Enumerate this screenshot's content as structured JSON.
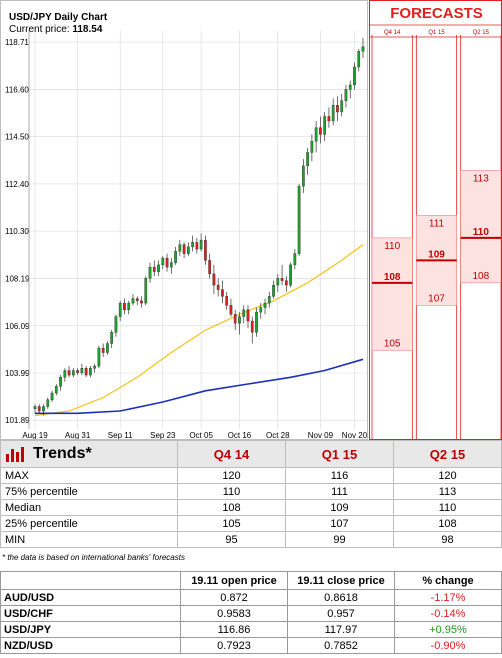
{
  "chart_header": {
    "title": "USD/JPY Daily Chart",
    "price_label": "Current price:",
    "price_value": "118.54"
  },
  "chart_data": {
    "type": "candlestick",
    "title": "USD/JPY Daily Chart",
    "ylim": [
      101.5,
      119.2
    ],
    "y_ticks": [
      "118.71",
      "116.60",
      "114.50",
      "112.40",
      "110.30",
      "108.19",
      "106.09",
      "103.99",
      "101.89"
    ],
    "x_ticks": [
      "Aug 19",
      "Aug 31",
      "Sep 11",
      "Sep 23",
      "Oct 05",
      "Oct 16",
      "Oct 28",
      "Nov 09",
      "Nov 20"
    ],
    "candles": [
      [
        102.4,
        102.6,
        102.2,
        102.5
      ],
      [
        102.5,
        102.6,
        102.2,
        102.3
      ],
      [
        102.3,
        102.6,
        102.1,
        102.5
      ],
      [
        102.5,
        102.9,
        102.4,
        102.8
      ],
      [
        102.8,
        103.2,
        102.7,
        103.1
      ],
      [
        103.1,
        103.5,
        103.0,
        103.4
      ],
      [
        103.4,
        103.9,
        103.2,
        103.8
      ],
      [
        103.8,
        104.2,
        103.6,
        104.1
      ],
      [
        104.1,
        104.3,
        103.8,
        103.9
      ],
      [
        103.9,
        104.2,
        103.8,
        104.1
      ],
      [
        104.1,
        104.2,
        103.9,
        104.0
      ],
      [
        104.0,
        104.4,
        103.9,
        104.2
      ],
      [
        104.2,
        104.3,
        103.8,
        103.9
      ],
      [
        103.9,
        104.3,
        103.8,
        104.2
      ],
      [
        104.2,
        104.4,
        104.0,
        104.3
      ],
      [
        104.3,
        105.2,
        104.2,
        105.1
      ],
      [
        105.1,
        105.3,
        104.7,
        104.9
      ],
      [
        104.9,
        105.4,
        104.8,
        105.3
      ],
      [
        105.3,
        105.9,
        105.1,
        105.8
      ],
      [
        105.8,
        106.6,
        105.6,
        106.5
      ],
      [
        106.5,
        107.2,
        106.3,
        107.1
      ],
      [
        107.1,
        107.3,
        106.6,
        106.8
      ],
      [
        106.8,
        107.2,
        106.6,
        107.1
      ],
      [
        107.1,
        107.5,
        107.0,
        107.3
      ],
      [
        107.3,
        107.4,
        107.0,
        107.2
      ],
      [
        107.2,
        107.4,
        106.9,
        107.1
      ],
      [
        107.1,
        108.3,
        107.0,
        108.2
      ],
      [
        108.2,
        108.9,
        108.0,
        108.7
      ],
      [
        108.7,
        109.0,
        108.3,
        108.5
      ],
      [
        108.5,
        109.0,
        108.3,
        108.8
      ],
      [
        108.8,
        109.2,
        108.6,
        109.1
      ],
      [
        109.1,
        109.3,
        108.5,
        108.7
      ],
      [
        108.7,
        109.1,
        108.4,
        108.9
      ],
      [
        108.9,
        109.6,
        108.8,
        109.4
      ],
      [
        109.4,
        109.9,
        109.2,
        109.7
      ],
      [
        109.7,
        109.8,
        109.1,
        109.3
      ],
      [
        109.3,
        109.8,
        109.2,
        109.6
      ],
      [
        109.6,
        110.1,
        109.4,
        109.8
      ],
      [
        109.8,
        110.0,
        109.3,
        109.5
      ],
      [
        109.5,
        110.2,
        109.4,
        109.9
      ],
      [
        109.9,
        110.1,
        108.8,
        109.0
      ],
      [
        109.0,
        109.3,
        108.2,
        108.4
      ],
      [
        108.4,
        108.8,
        107.5,
        107.9
      ],
      [
        107.9,
        108.2,
        107.4,
        107.7
      ],
      [
        107.7,
        108.1,
        107.1,
        107.4
      ],
      [
        107.4,
        107.6,
        106.8,
        107.0
      ],
      [
        107.0,
        107.3,
        106.5,
        106.6
      ],
      [
        106.6,
        106.8,
        105.9,
        106.2
      ],
      [
        106.2,
        106.7,
        105.7,
        106.5
      ],
      [
        106.5,
        107.0,
        106.2,
        106.8
      ],
      [
        106.8,
        107.0,
        106.0,
        106.3
      ],
      [
        106.3,
        106.5,
        105.3,
        105.8
      ],
      [
        105.8,
        106.9,
        105.6,
        106.7
      ],
      [
        106.7,
        107.1,
        106.4,
        106.9
      ],
      [
        106.9,
        107.3,
        106.6,
        107.1
      ],
      [
        107.1,
        107.6,
        106.9,
        107.4
      ],
      [
        107.4,
        108.1,
        107.3,
        107.9
      ],
      [
        107.9,
        108.4,
        107.6,
        108.2
      ],
      [
        108.2,
        108.8,
        107.9,
        108.1
      ],
      [
        108.1,
        108.3,
        107.6,
        107.9
      ],
      [
        107.9,
        108.9,
        107.8,
        108.8
      ],
      [
        108.8,
        109.5,
        108.6,
        109.3
      ],
      [
        109.3,
        112.4,
        109.2,
        112.3
      ],
      [
        112.3,
        113.5,
        112.0,
        113.2
      ],
      [
        113.2,
        114.0,
        112.8,
        113.8
      ],
      [
        113.8,
        114.6,
        113.4,
        114.3
      ],
      [
        114.3,
        115.2,
        113.8,
        114.9
      ],
      [
        114.9,
        115.4,
        114.2,
        114.6
      ],
      [
        114.6,
        115.6,
        114.3,
        115.4
      ],
      [
        115.4,
        115.8,
        114.9,
        115.2
      ],
      [
        115.2,
        116.2,
        115.0,
        115.9
      ],
      [
        115.9,
        116.3,
        115.2,
        115.6
      ],
      [
        115.6,
        116.4,
        115.4,
        116.1
      ],
      [
        116.1,
        116.8,
        115.8,
        116.6
      ],
      [
        116.6,
        117.0,
        116.2,
        116.8
      ],
      [
        116.8,
        117.8,
        116.6,
        117.6
      ],
      [
        117.6,
        118.4,
        117.4,
        118.3
      ],
      [
        118.3,
        118.9,
        118.0,
        118.5
      ]
    ],
    "series": [
      {
        "name": "",
        "color": "#f2c318",
        "points": [
          [
            0,
            102.1
          ],
          [
            8,
            102.3
          ],
          [
            16,
            102.9
          ],
          [
            24,
            103.8
          ],
          [
            32,
            104.9
          ],
          [
            40,
            105.9
          ],
          [
            48,
            106.6
          ],
          [
            56,
            107.2
          ],
          [
            64,
            108.0
          ],
          [
            72,
            109.0
          ],
          [
            77,
            109.7
          ]
        ]
      },
      {
        "name": "",
        "color": "#1c2fb8",
        "points": [
          [
            0,
            102.2
          ],
          [
            10,
            102.2
          ],
          [
            20,
            102.3
          ],
          [
            30,
            102.7
          ],
          [
            40,
            103.2
          ],
          [
            50,
            103.5
          ],
          [
            60,
            103.8
          ],
          [
            68,
            104.1
          ],
          [
            77,
            104.6
          ]
        ]
      }
    ],
    "forecasts": {
      "title": "FORECASTS",
      "columns": [
        "Q4 14",
        "Q1 15",
        "Q2 15"
      ],
      "ranges": [
        {
          "max": 110,
          "median": 108,
          "min": 105
        },
        {
          "max": 111,
          "median": 109,
          "min": 107
        },
        {
          "max": 113,
          "median": 110,
          "min": 108
        }
      ]
    }
  },
  "trends": {
    "title": "Trends*",
    "columns": [
      "Q4 14",
      "Q1 15",
      "Q2 15"
    ],
    "rows": [
      {
        "label": "MAX",
        "values": [
          "120",
          "116",
          "120"
        ]
      },
      {
        "label": "75% percentile",
        "values": [
          "110",
          "111",
          "113"
        ]
      },
      {
        "label": "Median",
        "values": [
          "108",
          "109",
          "110"
        ]
      },
      {
        "label": "25% percentile",
        "values": [
          "105",
          "107",
          "108"
        ]
      },
      {
        "label": "MIN",
        "values": [
          "95",
          "99",
          "98"
        ]
      }
    ],
    "note": "* the data is based on international banks' forecasts"
  },
  "fx_table": {
    "columns": [
      "19.11 open price",
      "19.11 close price",
      "% change"
    ],
    "rows": [
      {
        "pair": "AUD/USD",
        "open": "0.872",
        "close": "0.8618",
        "change": "-1.17%",
        "direction": "neg"
      },
      {
        "pair": "USD/CHF",
        "open": "0.9583",
        "close": "0.957",
        "change": "-0.14%",
        "direction": "neg"
      },
      {
        "pair": "USD/JPY",
        "open": "116.86",
        "close": "117.97",
        "change": "+0.95%",
        "direction": "pos"
      },
      {
        "pair": "NZD/USD",
        "open": "0.7923",
        "close": "0.7852",
        "change": "-0.90%",
        "direction": "neg"
      }
    ]
  },
  "colors": {
    "up": "#1aa52a",
    "down": "#e02020",
    "accent": "#c00000"
  }
}
